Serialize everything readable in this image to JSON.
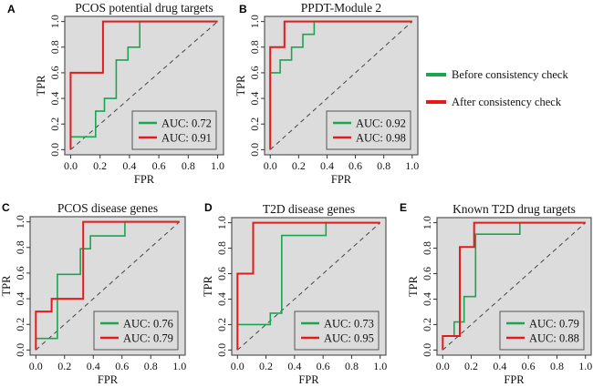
{
  "legend": {
    "items": [
      {
        "label": "Before consistency check",
        "color": "#1aa551"
      },
      {
        "label": "After consistency check",
        "color": "#e41a1c"
      }
    ]
  },
  "chart_data": [
    {
      "letter": "A",
      "type": "line",
      "title": "PCOS potential drug targets",
      "xlabel": "FPR",
      "ylabel": "TPR",
      "xlim": [
        0,
        1
      ],
      "ylim": [
        0,
        1
      ],
      "ticks": [
        "0.0",
        "0.2",
        "0.4",
        "0.6",
        "0.8",
        "1.0"
      ],
      "legend_position": "bottom-right",
      "series": [
        {
          "name": "Before consistency check",
          "auc_label": "AUC: 0.72",
          "color": "#1aa551",
          "x": [
            0,
            0,
            0.17,
            0.17,
            0.23,
            0.23,
            0.31,
            0.31,
            0.39,
            0.39,
            0.47,
            0.47,
            1
          ],
          "y": [
            0,
            0.1,
            0.1,
            0.3,
            0.3,
            0.4,
            0.4,
            0.7,
            0.7,
            0.8,
            0.8,
            1,
            1
          ]
        },
        {
          "name": "After consistency check",
          "auc_label": "AUC: 0.91",
          "color": "#e41a1c",
          "x": [
            0,
            0,
            0.22,
            0.22,
            1
          ],
          "y": [
            0,
            0.6,
            0.6,
            1,
            1
          ]
        }
      ]
    },
    {
      "letter": "B",
      "type": "line",
      "title": "PPDT-Module 2",
      "xlabel": "FPR",
      "ylabel": "TPR",
      "xlim": [
        0,
        1
      ],
      "ylim": [
        0,
        1
      ],
      "ticks": [
        "0.0",
        "0.2",
        "0.4",
        "0.6",
        "0.8",
        "1.0"
      ],
      "legend_position": "bottom-right",
      "series": [
        {
          "name": "Before consistency check",
          "auc_label": "AUC: 0.92",
          "color": "#1aa551",
          "x": [
            0,
            0,
            0.07,
            0.07,
            0.15,
            0.15,
            0.23,
            0.23,
            0.31,
            0.31,
            1
          ],
          "y": [
            0,
            0.6,
            0.6,
            0.7,
            0.7,
            0.8,
            0.8,
            0.9,
            0.9,
            1,
            1
          ]
        },
        {
          "name": "After consistency check",
          "auc_label": "AUC: 0.98",
          "color": "#e41a1c",
          "x": [
            0,
            0,
            0.1,
            0.1,
            1
          ],
          "y": [
            0,
            0.8,
            0.8,
            1,
            1
          ]
        }
      ]
    },
    {
      "letter": "C",
      "type": "line",
      "title": "PCOS disease genes",
      "xlabel": "FPR",
      "ylabel": "TPR",
      "xlim": [
        0,
        1
      ],
      "ylim": [
        0,
        1
      ],
      "ticks": [
        "0.0",
        "0.2",
        "0.4",
        "0.6",
        "0.8",
        "1.0"
      ],
      "legend_position": "bottom-right",
      "series": [
        {
          "name": "Before consistency check",
          "auc_label": "AUC: 0.76",
          "color": "#1aa551",
          "x": [
            0,
            0,
            0.15,
            0.15,
            0.31,
            0.31,
            0.38,
            0.38,
            0.62,
            0.62,
            1
          ],
          "y": [
            0,
            0.09,
            0.09,
            0.59,
            0.59,
            0.79,
            0.79,
            0.89,
            0.89,
            1,
            1
          ]
        },
        {
          "name": "After consistency check",
          "auc_label": "AUC: 0.79",
          "color": "#e41a1c",
          "x": [
            0,
            0,
            0.11,
            0.11,
            0.33,
            0.33,
            1
          ],
          "y": [
            0,
            0.3,
            0.3,
            0.4,
            0.4,
            1,
            1
          ]
        }
      ]
    },
    {
      "letter": "D",
      "type": "line",
      "title": "T2D disease genes",
      "xlabel": "FPR",
      "ylabel": "TPR",
      "xlim": [
        0,
        1
      ],
      "ylim": [
        0,
        1
      ],
      "ticks": [
        "0.0",
        "0.2",
        "0.4",
        "0.6",
        "0.8",
        "1.0"
      ],
      "legend_position": "bottom-right",
      "series": [
        {
          "name": "Before consistency check",
          "auc_label": "AUC: 0.73",
          "color": "#1aa551",
          "x": [
            0,
            0,
            0.23,
            0.23,
            0.31,
            0.31,
            0.62,
            0.62,
            1
          ],
          "y": [
            0,
            0.2,
            0.2,
            0.29,
            0.29,
            0.9,
            0.9,
            1,
            1
          ]
        },
        {
          "name": "After consistency check",
          "auc_label": "AUC: 0.95",
          "color": "#e41a1c",
          "x": [
            0,
            0,
            0.11,
            0.11,
            1
          ],
          "y": [
            0,
            0.6,
            0.6,
            1,
            1
          ]
        }
      ]
    },
    {
      "letter": "E",
      "type": "line",
      "title": "Known T2D drug targets",
      "xlabel": "FPR",
      "ylabel": "TPR",
      "xlim": [
        0,
        1
      ],
      "ylim": [
        0,
        1
      ],
      "ticks": [
        "0.0",
        "0.2",
        "0.4",
        "0.6",
        "0.8",
        "1.0"
      ],
      "legend_position": "bottom-right",
      "series": [
        {
          "name": "Before consistency check",
          "auc_label": "AUC: 0.79",
          "color": "#1aa551",
          "x": [
            0,
            0,
            0.08,
            0.08,
            0.15,
            0.15,
            0.23,
            0.23,
            0.54,
            0.54,
            1
          ],
          "y": [
            0,
            0.11,
            0.11,
            0.22,
            0.22,
            0.42,
            0.42,
            0.91,
            0.91,
            1,
            1
          ]
        },
        {
          "name": "After consistency check",
          "auc_label": "AUC: 0.88",
          "color": "#e41a1c",
          "x": [
            0,
            0,
            0.12,
            0.12,
            0.22,
            0.22,
            1
          ],
          "y": [
            0,
            0.11,
            0.11,
            0.81,
            0.81,
            1,
            1
          ]
        }
      ]
    }
  ]
}
